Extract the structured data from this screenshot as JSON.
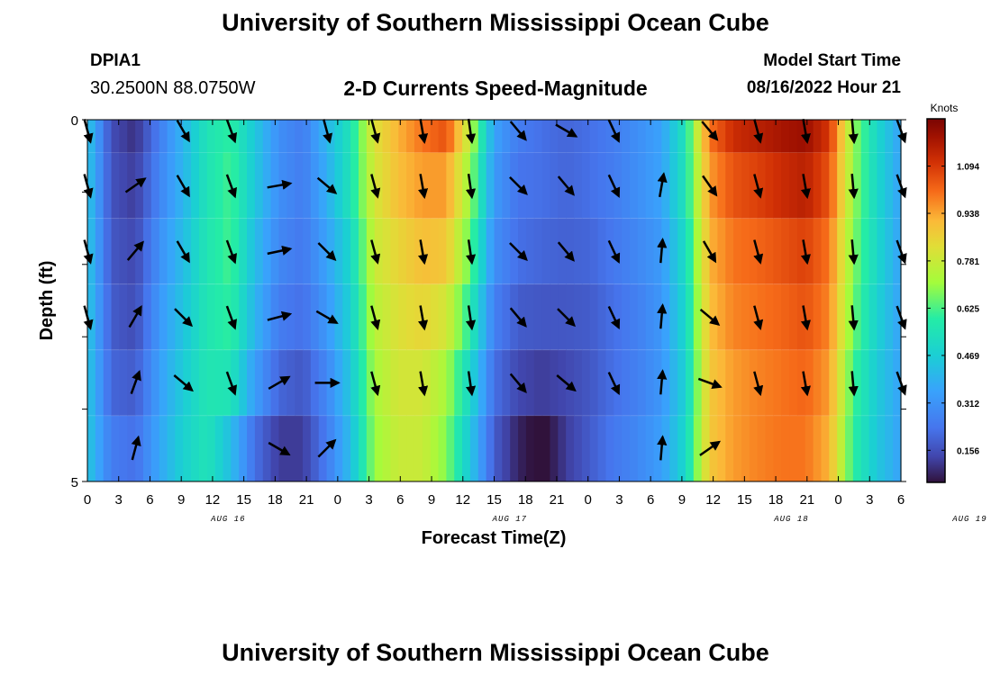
{
  "header": {
    "title": "University of Southern Mississippi Ocean Cube",
    "station_name": "DPIA1",
    "coordinates": "30.2500N  88.0750W",
    "plot_title": "2-D Currents Speed-Magnitude",
    "model_start_label": "Model Start Time",
    "model_start_value": "08/16/2022 Hour 21"
  },
  "footer": {
    "title": "University of Southern Mississippi Ocean Cube"
  },
  "chart_data": {
    "type": "heatmap",
    "title": "2-D Currents Speed-Magnitude",
    "xlabel": "Forecast Time(Z)",
    "ylabel": "Depth (ft)",
    "x_tick_labels": [
      "0",
      "3",
      "6",
      "9",
      "12",
      "15",
      "18",
      "21",
      "0",
      "3",
      "6",
      "9",
      "12",
      "15",
      "18",
      "21",
      "0",
      "3",
      "6",
      "9",
      "12",
      "15",
      "18",
      "21",
      "0",
      "3",
      "6"
    ],
    "date_labels": [
      {
        "label": "AUG 16",
        "tick_index": 4.5
      },
      {
        "label": "AUG 17",
        "tick_index": 13.5
      },
      {
        "label": "AUG 18",
        "tick_index": 22.5
      },
      {
        "label": "AUG 19",
        "tick_index": 28.2
      }
    ],
    "y_tick_labels": [
      "0",
      "5"
    ],
    "ylim": [
      0,
      5
    ],
    "colorbar": {
      "label": "Knots",
      "ticks": [
        "1.094",
        "0.938",
        "0.781",
        "0.625",
        "0.469",
        "0.312",
        "0.156"
      ],
      "tick_values": [
        1.094,
        0.938,
        0.781,
        0.625,
        0.469,
        0.312,
        0.156
      ],
      "range": [
        0.05,
        1.25
      ]
    },
    "hours_from_start": [
      -21,
      -18,
      -15,
      -12,
      -9,
      -6,
      -3,
      0,
      3,
      6,
      9,
      12,
      15,
      18,
      21,
      24,
      27,
      30,
      33,
      36,
      39,
      42,
      45,
      48,
      51,
      54,
      57,
      60,
      63,
      66,
      69,
      72,
      75,
      78,
      81
    ],
    "depth_rows": [
      0,
      1,
      2,
      3,
      4,
      5
    ],
    "speed_knots": [
      [
        0.45,
        0.15,
        0.1,
        0.25,
        0.4,
        0.55,
        0.6,
        0.45,
        0.3,
        0.25,
        0.4,
        0.55,
        0.82,
        0.92,
        1.0,
        1.05,
        0.75,
        0.35,
        0.25,
        0.22,
        0.2,
        0.22,
        0.25,
        0.3,
        0.35,
        0.55,
        1.0,
        1.12,
        1.15,
        1.18,
        1.2,
        1.1,
        0.7,
        0.5,
        0.35
      ],
      [
        0.45,
        0.16,
        0.12,
        0.27,
        0.4,
        0.55,
        0.62,
        0.45,
        0.3,
        0.25,
        0.38,
        0.55,
        0.8,
        0.9,
        0.95,
        0.95,
        0.7,
        0.33,
        0.23,
        0.22,
        0.2,
        0.22,
        0.25,
        0.3,
        0.35,
        0.55,
        0.95,
        1.05,
        1.08,
        1.12,
        1.15,
        1.05,
        0.7,
        0.5,
        0.35
      ],
      [
        0.45,
        0.17,
        0.14,
        0.3,
        0.42,
        0.56,
        0.62,
        0.42,
        0.28,
        0.24,
        0.35,
        0.5,
        0.78,
        0.85,
        0.9,
        0.88,
        0.65,
        0.3,
        0.22,
        0.2,
        0.19,
        0.2,
        0.24,
        0.28,
        0.33,
        0.52,
        0.92,
        1.0,
        1.02,
        1.05,
        1.08,
        1.0,
        0.68,
        0.5,
        0.35
      ],
      [
        0.45,
        0.18,
        0.15,
        0.32,
        0.44,
        0.56,
        0.6,
        0.4,
        0.25,
        0.22,
        0.32,
        0.48,
        0.75,
        0.82,
        0.85,
        0.8,
        0.58,
        0.26,
        0.18,
        0.17,
        0.17,
        0.18,
        0.22,
        0.26,
        0.32,
        0.5,
        0.9,
        0.98,
        1.0,
        1.02,
        1.05,
        0.98,
        0.66,
        0.48,
        0.35
      ],
      [
        0.45,
        0.2,
        0.18,
        0.34,
        0.46,
        0.56,
        0.55,
        0.34,
        0.2,
        0.17,
        0.28,
        0.45,
        0.72,
        0.8,
        0.8,
        0.72,
        0.5,
        0.22,
        0.14,
        0.12,
        0.14,
        0.17,
        0.22,
        0.26,
        0.32,
        0.48,
        0.88,
        0.95,
        0.98,
        1.0,
        1.02,
        0.95,
        0.62,
        0.46,
        0.35
      ],
      [
        0.45,
        0.25,
        0.22,
        0.36,
        0.48,
        0.55,
        0.42,
        0.22,
        0.12,
        0.12,
        0.25,
        0.42,
        0.7,
        0.78,
        0.78,
        0.68,
        0.45,
        0.18,
        0.08,
        0.03,
        0.12,
        0.18,
        0.24,
        0.28,
        0.34,
        0.5,
        0.88,
        0.95,
        0.98,
        1.0,
        1.0,
        0.92,
        0.6,
        0.45,
        0.35
      ]
    ],
    "arrows": [
      {
        "hours_from_start": -21,
        "directions_deg": [
          165,
          165,
          165,
          165,
          null,
          null
        ]
      },
      {
        "hours_from_start": -18,
        "directions_deg": [
          null,
          null,
          null,
          null,
          null,
          null
        ]
      },
      {
        "hours_from_start": -15,
        "directions_deg": [
          null,
          55,
          40,
          30,
          20,
          15
        ]
      },
      {
        "hours_from_start": -9,
        "directions_deg": [
          150,
          150,
          150,
          135,
          130,
          null
        ]
      },
      {
        "hours_from_start": -3,
        "directions_deg": [
          160,
          160,
          160,
          160,
          160,
          null
        ]
      },
      {
        "hours_from_start": 3,
        "directions_deg": [
          null,
          80,
          78,
          75,
          60,
          120
        ]
      },
      {
        "hours_from_start": 9,
        "directions_deg": [
          165,
          130,
          135,
          120,
          90,
          45
        ]
      },
      {
        "hours_from_start": 15,
        "directions_deg": [
          165,
          165,
          165,
          165,
          165,
          null
        ]
      },
      {
        "hours_from_start": 21,
        "directions_deg": [
          170,
          170,
          170,
          170,
          170,
          null
        ]
      },
      {
        "hours_from_start": 27,
        "directions_deg": [
          172,
          172,
          172,
          172,
          172,
          null
        ]
      },
      {
        "hours_from_start": 33,
        "directions_deg": [
          140,
          135,
          135,
          140,
          140,
          null
        ]
      },
      {
        "hours_from_start": 39,
        "directions_deg": [
          120,
          140,
          140,
          135,
          130,
          null
        ]
      },
      {
        "hours_from_start": 45,
        "directions_deg": [
          155,
          155,
          155,
          155,
          155,
          null
        ]
      },
      {
        "hours_from_start": 51,
        "directions_deg": [
          null,
          10,
          5,
          5,
          5,
          5
        ]
      },
      {
        "hours_from_start": 57,
        "directions_deg": [
          140,
          145,
          150,
          130,
          110,
          55
        ]
      },
      {
        "hours_from_start": 63,
        "directions_deg": [
          165,
          165,
          165,
          165,
          165,
          null
        ]
      },
      {
        "hours_from_start": 69,
        "directions_deg": [
          170,
          170,
          170,
          170,
          170,
          null
        ]
      },
      {
        "hours_from_start": 75,
        "directions_deg": [
          175,
          175,
          175,
          175,
          175,
          null
        ]
      },
      {
        "hours_from_start": 81,
        "directions_deg": [
          160,
          160,
          160,
          160,
          160,
          null
        ]
      }
    ]
  }
}
